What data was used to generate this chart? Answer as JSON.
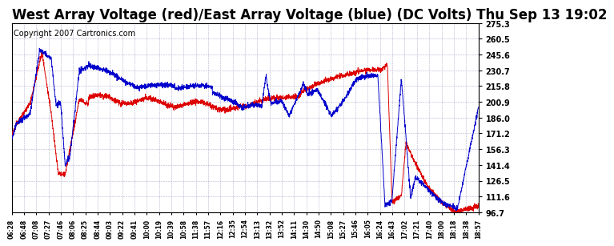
{
  "title": "West Array Voltage (red)/East Array Voltage (blue) (DC Volts) Thu Sep 13 19:02",
  "copyright": "Copyright 2007 Cartronics.com",
  "bg_color": "#ffffff",
  "plot_bg_color": "#ffffff",
  "grid_color": "#aaaacc",
  "red_color": "#dd0000",
  "blue_color": "#0000cc",
  "ylim": [
    96.7,
    275.3
  ],
  "yticks": [
    96.7,
    111.6,
    126.5,
    141.4,
    156.3,
    171.2,
    186.0,
    200.9,
    215.8,
    230.7,
    245.6,
    260.5,
    275.3
  ],
  "xtick_labels": [
    "06:28",
    "06:48",
    "07:08",
    "07:27",
    "07:46",
    "08:06",
    "08:25",
    "08:44",
    "09:03",
    "09:22",
    "09:41",
    "10:00",
    "10:19",
    "10:39",
    "10:58",
    "11:38",
    "11:57",
    "12:16",
    "12:35",
    "12:54",
    "13:13",
    "13:32",
    "13:52",
    "14:11",
    "14:30",
    "14:50",
    "15:08",
    "15:27",
    "15:46",
    "16:05",
    "16:24",
    "16:43",
    "17:02",
    "17:21",
    "17:40",
    "18:00",
    "18:18",
    "18:38",
    "18:57"
  ],
  "title_fontsize": 12,
  "copyright_fontsize": 7
}
